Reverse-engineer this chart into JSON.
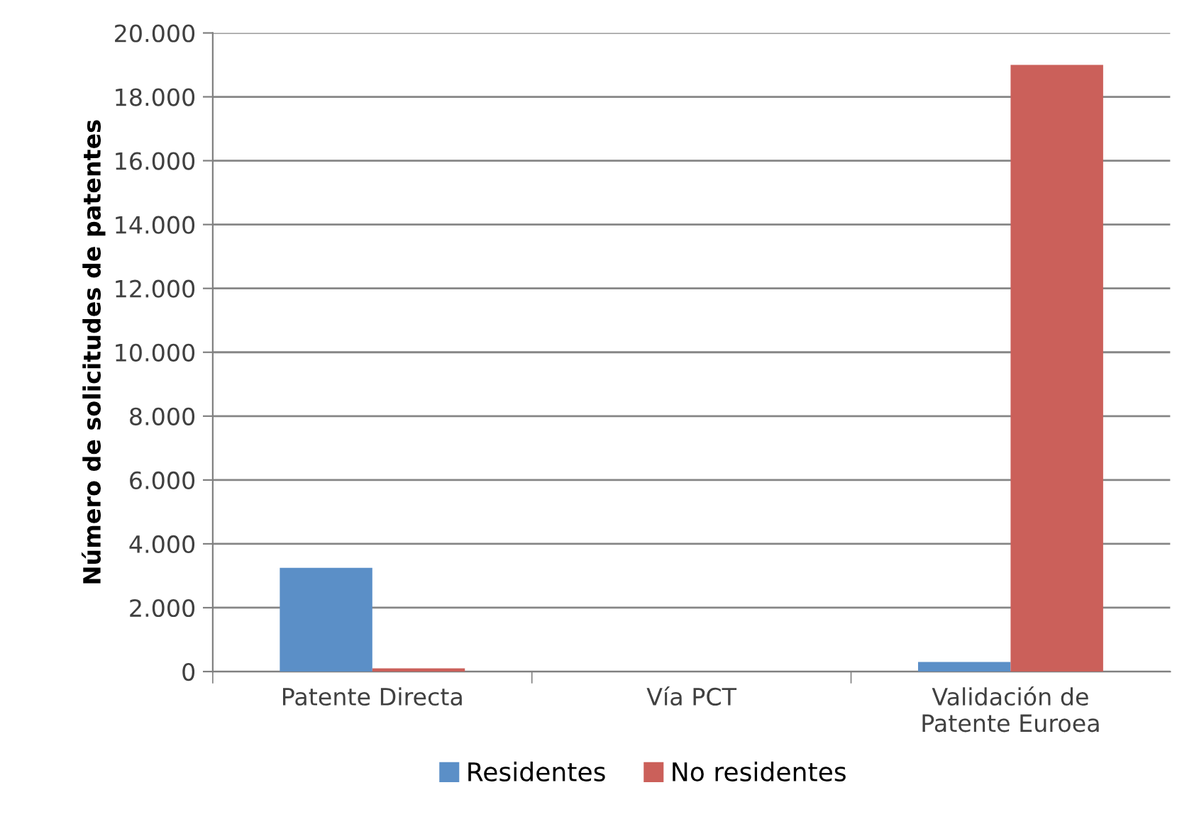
{
  "chart_data": {
    "type": "bar",
    "ylabel": "Número de solicitudes de patentes",
    "categories": [
      "Patente Directa",
      "Vía PCT",
      "Validación de\nPatente Euroea"
    ],
    "series": [
      {
        "name": "Residentes",
        "color": "#5b8fc7",
        "values": [
          3250,
          0,
          300
        ]
      },
      {
        "name": "No residentes",
        "color": "#cb605a",
        "values": [
          100,
          0,
          19000
        ]
      }
    ],
    "ylim": [
      0,
      20000
    ],
    "yticks": [
      {
        "value": 0,
        "label": "0"
      },
      {
        "value": 2000,
        "label": "2.000"
      },
      {
        "value": 4000,
        "label": "4.000"
      },
      {
        "value": 6000,
        "label": "6.000"
      },
      {
        "value": 8000,
        "label": "8.000"
      },
      {
        "value": 10000,
        "label": "10.000"
      },
      {
        "value": 12000,
        "label": "12.000"
      },
      {
        "value": 14000,
        "label": "14.000"
      },
      {
        "value": 16000,
        "label": "16.000"
      },
      {
        "value": 18000,
        "label": "18.000"
      },
      {
        "value": 20000,
        "label": "20.000"
      }
    ],
    "grid": "y",
    "legend": "bottom"
  }
}
